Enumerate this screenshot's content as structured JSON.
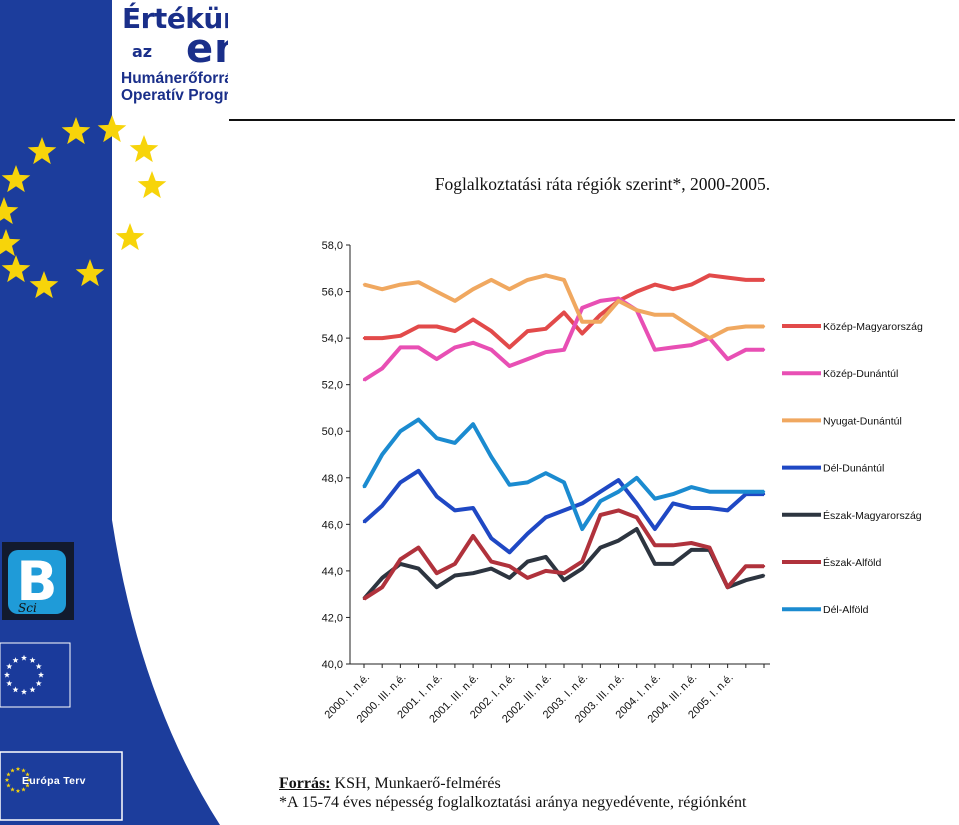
{
  "logo": {
    "line1": "Értékünk",
    "az": "az",
    "line2": "ember",
    "program_line1": "Humánerőforrás- fejlesztési",
    "program_line2": "Operatív Program"
  },
  "badge": {
    "letter": "B",
    "sub": "Sci"
  },
  "europa_terv": "Európa Terv",
  "colors": {
    "sidebar_blue": "#1c3d9c",
    "sidebar_dark": "#152d7a",
    "star_yellow": "#f7d40a"
  },
  "chart_data": {
    "type": "line",
    "title": "Foglalkoztatási ráta régiók szerint*, 2000-2005.",
    "ylim": [
      40,
      58
    ],
    "y_ticks": [
      "58,0",
      "56,0",
      "54,0",
      "52,0",
      "50,0",
      "48,0",
      "46,0",
      "44,0",
      "42,0",
      "40,0"
    ],
    "x_tick_labels": [
      "2000. I. n.é.",
      "2000. III. n.é.",
      "2001. I. n.é.",
      "2001. III. n.é.",
      "2002. I. n.é.",
      "2002. III. n.é.",
      "2003. I. n.é.",
      "2003. III. n.é.",
      "2004. I. n.é.",
      "2004. III. n.é.",
      "2005. I. n.é."
    ],
    "n_points": 23,
    "legend_position": "right",
    "grid": false,
    "series": [
      {
        "name": "Közép-Magyarország",
        "color": "#e24a4a",
        "values": [
          54.0,
          54.0,
          54.1,
          54.5,
          54.5,
          54.3,
          54.8,
          54.3,
          53.6,
          54.3,
          54.4,
          55.1,
          54.2,
          55.0,
          55.6,
          56.0,
          56.3,
          56.1,
          56.3,
          56.7,
          56.6,
          56.5,
          56.5
        ]
      },
      {
        "name": "Közép-Dunántúl",
        "color": "#e84fb4",
        "values": [
          52.2,
          52.7,
          53.6,
          53.6,
          53.1,
          53.6,
          53.8,
          53.5,
          52.8,
          53.1,
          53.4,
          53.5,
          55.3,
          55.6,
          55.7,
          55.2,
          53.5,
          53.6,
          53.7,
          54.0,
          53.1,
          53.5,
          53.5
        ]
      },
      {
        "name": "Nyugat-Dunántúl",
        "color": "#f0a860",
        "values": [
          56.3,
          56.1,
          56.3,
          56.4,
          56.0,
          55.6,
          56.1,
          56.5,
          56.1,
          56.5,
          56.7,
          56.5,
          54.7,
          54.7,
          55.6,
          55.2,
          55.0,
          55.0,
          54.5,
          54.0,
          54.4,
          54.5,
          54.5
        ]
      },
      {
        "name": "Dél-Dunántúl",
        "color": "#1f48c4",
        "values": [
          46.1,
          46.8,
          47.8,
          48.3,
          47.2,
          46.6,
          46.7,
          45.4,
          44.8,
          45.6,
          46.3,
          46.6,
          46.9,
          47.4,
          47.9,
          46.9,
          45.8,
          46.9,
          46.7,
          46.7,
          46.6,
          47.3,
          47.3
        ]
      },
      {
        "name": "Észak-Magyarország",
        "color": "#2d3540",
        "values": [
          42.8,
          43.7,
          44.3,
          44.1,
          43.3,
          43.8,
          43.9,
          44.1,
          43.7,
          44.4,
          44.6,
          43.6,
          44.1,
          45.0,
          45.3,
          45.8,
          44.3,
          44.3,
          44.9,
          44.9,
          43.3,
          43.6,
          43.8
        ]
      },
      {
        "name": "Észak-Alföld",
        "color": "#b0323c",
        "values": [
          42.8,
          43.3,
          44.5,
          45.0,
          43.9,
          44.3,
          45.5,
          44.4,
          44.2,
          43.7,
          44.0,
          43.9,
          44.4,
          46.4,
          46.6,
          46.3,
          45.1,
          45.1,
          45.2,
          45.0,
          43.3,
          44.2,
          44.2
        ]
      },
      {
        "name": "Dél-Alföld",
        "color": "#1b8bd0",
        "values": [
          47.6,
          49.0,
          50.0,
          50.5,
          49.7,
          49.5,
          50.3,
          48.9,
          47.7,
          47.8,
          48.2,
          47.8,
          45.8,
          47.0,
          47.4,
          48.0,
          47.1,
          47.3,
          47.6,
          47.4,
          47.4,
          47.4,
          47.4
        ]
      }
    ]
  },
  "source": {
    "label": "Forrás:",
    "text": " KSH, Munkaerő-felmérés",
    "note": "*A 15-74 éves népesség foglalkoztatási aránya negyedévente, régiónként"
  }
}
